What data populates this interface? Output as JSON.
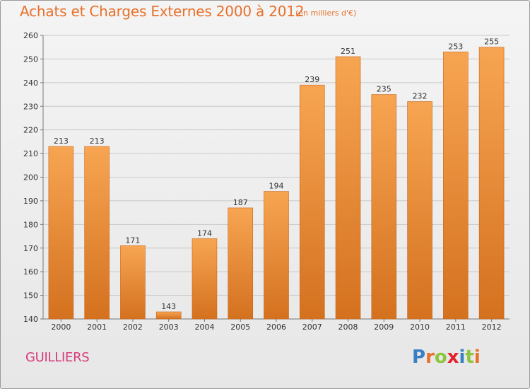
{
  "header": {
    "title": "Achats et Charges Externes 2000 à 2012",
    "subtitle": "(en milliers d'€)"
  },
  "footer": {
    "commune": "GUILLIERS",
    "logo_text": "Proxiti",
    "logo_letters": [
      {
        "ch": "P",
        "color": "#3a7fc4"
      },
      {
        "ch": "r",
        "color": "#e8702a"
      },
      {
        "ch": "o",
        "color": "#8cc63e"
      },
      {
        "ch": "x",
        "color": "#e2232a"
      },
      {
        "ch": "i",
        "color": "#3a7fc4"
      },
      {
        "ch": "t",
        "color": "#8cc63e"
      },
      {
        "ch": "i",
        "color": "#e8702a"
      }
    ]
  },
  "colors": {
    "bar_top": "#f7a552",
    "bar_bottom": "#d4711f",
    "title": "#e8702a",
    "commune": "#d83a7a",
    "grid": "#c8c8c8"
  },
  "chart_data": {
    "type": "bar",
    "title": "Achats et Charges Externes 2000 à 2012",
    "subtitle": "(en milliers d'€)",
    "xlabel": "",
    "ylabel": "",
    "categories": [
      "2000",
      "2001",
      "2002",
      "2003",
      "2004",
      "2005",
      "2006",
      "2007",
      "2008",
      "2009",
      "2010",
      "2011",
      "2012"
    ],
    "values": [
      213,
      213,
      171,
      143,
      174,
      187,
      194,
      239,
      251,
      235,
      232,
      253,
      255
    ],
    "ylim": [
      140,
      260
    ],
    "yticks": [
      140,
      150,
      160,
      170,
      180,
      190,
      200,
      210,
      220,
      230,
      240,
      250,
      260
    ],
    "grid": true,
    "data_labels": true,
    "legend": "none"
  }
}
